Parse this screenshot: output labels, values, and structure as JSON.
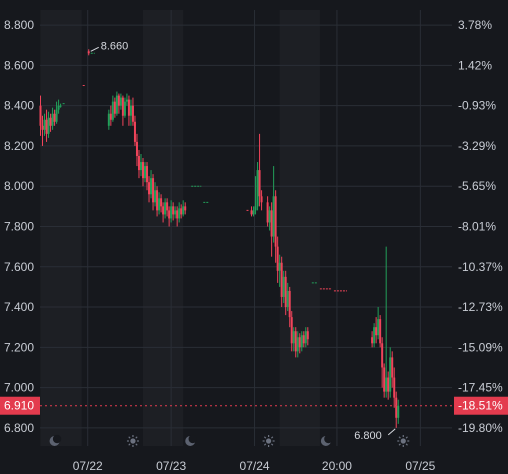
{
  "chart_data": {
    "type": "candlestick",
    "title": "",
    "xlabel": "",
    "ylabel": "",
    "ylim": [
      6.71,
      8.875
    ],
    "y_ticks": [
      "8.800",
      "8.600",
      "8.400",
      "8.200",
      "8.000",
      "7.800",
      "7.600",
      "7.400",
      "7.200",
      "7.000",
      "6.800"
    ],
    "y_tick_values": [
      8.8,
      8.6,
      8.4,
      8.2,
      8.0,
      7.8,
      7.6,
      7.4,
      7.2,
      7.0,
      6.8
    ],
    "pct_ticks": [
      "3.78%",
      "1.42%",
      "-0.93%",
      "-3.29%",
      "-5.65%",
      "-8.01%",
      "-10.37%",
      "-12.73%",
      "-15.09%",
      "-17.45%",
      "-19.80%"
    ],
    "x_ticks": [
      "07/22",
      "07/23",
      "07/24",
      "20:00",
      "07/25"
    ],
    "x_tick_index": [
      47,
      130,
      213,
      295,
      378
    ],
    "n_slots": 410,
    "current_price": "6.910",
    "current_pct": "-18.51%",
    "max_label": "8.660",
    "min_label": "6.800",
    "max_value": 8.66,
    "min_value": 6.8,
    "colors": {
      "up": "#22a05a",
      "down": "#f0445a",
      "bg": "#16181d",
      "grid": "#2a2e36",
      "night": "#1d1f24",
      "badge": "#e33b4e",
      "text": "#c8ccd4"
    },
    "icons": [
      "moon-icon",
      "sun-icon",
      "moon-icon",
      "sun-icon",
      "moon-icon",
      "sun-icon"
    ],
    "icon_index": [
      14,
      92,
      149,
      227,
      284,
      361
    ],
    "night_shading": [
      [
        0,
        41
      ],
      [
        102,
        142
      ],
      [
        238,
        278
      ]
    ],
    "candles": [
      [
        0,
        8.4,
        8.3,
        8.45,
        8.25
      ],
      [
        2,
        8.3,
        8.28,
        8.35,
        8.2
      ],
      [
        4,
        8.28,
        8.33,
        8.36,
        8.25
      ],
      [
        6,
        8.33,
        8.26,
        8.38,
        8.22
      ],
      [
        8,
        8.26,
        8.34,
        8.37,
        8.24
      ],
      [
        10,
        8.34,
        8.3,
        8.36,
        8.27
      ],
      [
        12,
        8.3,
        8.36,
        8.39,
        8.28
      ],
      [
        14,
        8.36,
        8.32,
        8.38,
        8.3
      ],
      [
        16,
        8.32,
        8.38,
        8.42,
        8.31
      ],
      [
        18,
        8.38,
        8.4,
        8.43,
        8.36
      ],
      [
        20,
        8.4,
        8.4,
        8.41,
        8.39
      ],
      [
        48,
        8.67,
        8.66,
        8.68,
        8.65
      ],
      [
        68,
        8.3,
        8.36,
        8.38,
        8.28
      ],
      [
        70,
        8.36,
        8.33,
        8.4,
        8.3
      ],
      [
        72,
        8.33,
        8.42,
        8.45,
        8.32
      ],
      [
        74,
        8.42,
        8.36,
        8.44,
        8.34
      ],
      [
        76,
        8.36,
        8.45,
        8.47,
        8.35
      ],
      [
        78,
        8.45,
        8.4,
        8.46,
        8.36
      ],
      [
        80,
        8.4,
        8.44,
        8.46,
        8.38
      ],
      [
        82,
        8.44,
        8.35,
        8.45,
        8.3
      ],
      [
        84,
        8.35,
        8.42,
        8.44,
        8.34
      ],
      [
        86,
        8.42,
        8.43,
        8.46,
        8.4
      ],
      [
        88,
        8.43,
        8.35,
        8.45,
        8.3
      ],
      [
        90,
        8.35,
        8.4,
        8.43,
        8.3
      ],
      [
        92,
        8.4,
        8.32,
        8.44,
        8.3
      ],
      [
        94,
        8.32,
        8.22,
        8.35,
        8.2
      ],
      [
        96,
        8.22,
        8.15,
        8.26,
        8.1
      ],
      [
        98,
        8.15,
        8.08,
        8.18,
        8.04
      ],
      [
        100,
        8.08,
        8.12,
        8.16,
        8.05
      ],
      [
        102,
        8.12,
        8.04,
        8.14,
        8.0
      ],
      [
        104,
        8.04,
        8.1,
        8.12,
        8.02
      ],
      [
        106,
        8.1,
        8.02,
        8.12,
        7.98
      ],
      [
        108,
        8.02,
        7.96,
        8.05,
        7.92
      ],
      [
        110,
        7.96,
        8.04,
        8.08,
        7.94
      ],
      [
        112,
        8.04,
        7.92,
        8.06,
        7.88
      ],
      [
        114,
        7.92,
        7.98,
        8.02,
        7.9
      ],
      [
        116,
        7.98,
        7.88,
        8.0,
        7.85
      ],
      [
        118,
        7.88,
        7.94,
        7.97,
        7.86
      ],
      [
        120,
        7.94,
        7.9,
        7.96,
        7.87
      ],
      [
        122,
        7.9,
        7.86,
        7.92,
        7.82
      ],
      [
        124,
        7.86,
        7.92,
        7.94,
        7.84
      ],
      [
        126,
        7.92,
        7.88,
        7.94,
        7.85
      ],
      [
        128,
        7.88,
        7.84,
        7.9,
        7.8
      ],
      [
        130,
        7.84,
        7.9,
        7.93,
        7.82
      ],
      [
        132,
        7.9,
        7.86,
        7.92,
        7.83
      ],
      [
        134,
        7.86,
        7.88,
        7.9,
        7.84
      ],
      [
        136,
        7.88,
        7.84,
        7.9,
        7.8
      ],
      [
        138,
        7.84,
        7.89,
        7.92,
        7.82
      ],
      [
        140,
        7.89,
        7.86,
        7.91,
        7.84
      ],
      [
        142,
        7.86,
        7.9,
        7.93,
        7.85
      ],
      [
        144,
        7.9,
        7.88,
        7.92,
        7.86
      ],
      [
        210,
        7.88,
        7.86,
        7.9,
        7.85
      ],
      [
        212,
        7.86,
        7.88,
        7.9,
        7.85
      ],
      [
        214,
        7.88,
        7.9,
        8.05,
        7.86
      ],
      [
        216,
        7.9,
        8.08,
        8.12,
        7.88
      ],
      [
        218,
        8.08,
        7.95,
        8.26,
        7.9
      ],
      [
        220,
        7.95,
        7.92,
        7.98,
        7.88
      ],
      [
        226,
        7.92,
        7.82,
        7.95,
        7.8
      ],
      [
        228,
        7.82,
        7.88,
        7.9,
        7.78
      ],
      [
        230,
        7.88,
        7.75,
        7.92,
        7.65
      ],
      [
        232,
        7.75,
        7.95,
        8.1,
        7.72
      ],
      [
        234,
        7.95,
        7.7,
        7.98,
        7.62
      ],
      [
        236,
        7.7,
        7.58,
        7.75,
        7.52
      ],
      [
        238,
        7.58,
        7.62,
        7.66,
        7.5
      ],
      [
        240,
        7.62,
        7.45,
        7.65,
        7.4
      ],
      [
        242,
        7.45,
        7.55,
        7.58,
        7.42
      ],
      [
        244,
        7.55,
        7.4,
        7.58,
        7.36
      ],
      [
        246,
        7.4,
        7.48,
        7.52,
        7.38
      ],
      [
        248,
        7.48,
        7.35,
        7.5,
        7.3
      ],
      [
        250,
        7.35,
        7.22,
        7.38,
        7.18
      ],
      [
        252,
        7.22,
        7.28,
        7.3,
        7.18
      ],
      [
        254,
        7.28,
        7.18,
        7.3,
        7.15
      ],
      [
        256,
        7.18,
        7.25,
        7.28,
        7.15
      ],
      [
        258,
        7.25,
        7.2,
        7.27,
        7.17
      ],
      [
        260,
        7.2,
        7.26,
        7.28,
        7.18
      ],
      [
        262,
        7.26,
        7.22,
        7.28,
        7.2
      ],
      [
        264,
        7.22,
        7.28,
        7.3,
        7.2
      ],
      [
        266,
        7.28,
        7.24,
        7.3,
        7.21
      ],
      [
        330,
        7.25,
        7.22,
        7.28,
        7.2
      ],
      [
        332,
        7.22,
        7.3,
        7.32,
        7.2
      ],
      [
        334,
        7.3,
        7.26,
        7.35,
        7.22
      ],
      [
        336,
        7.26,
        7.34,
        7.4,
        7.24
      ],
      [
        338,
        7.34,
        7.22,
        7.36,
        7.2
      ],
      [
        340,
        7.22,
        7.1,
        7.25,
        7.0
      ],
      [
        342,
        7.1,
        6.98,
        7.12,
        6.95
      ],
      [
        344,
        6.98,
        7.05,
        7.7,
        6.95
      ],
      [
        346,
        7.05,
        6.98,
        7.08,
        6.94
      ],
      [
        348,
        6.98,
        7.15,
        7.2,
        6.95
      ],
      [
        350,
        7.15,
        7.05,
        7.18,
        7.0
      ],
      [
        352,
        7.05,
        6.95,
        7.1,
        6.9
      ],
      [
        354,
        6.95,
        6.85,
        6.98,
        6.8
      ],
      [
        356,
        6.85,
        6.91,
        6.94,
        6.82
      ]
    ],
    "flat_segments": [
      [
        22,
        24,
        8.41,
        "up"
      ],
      [
        50,
        54,
        8.66,
        "up"
      ],
      [
        42,
        44,
        8.5,
        "down"
      ],
      [
        150,
        160,
        8.0,
        "up"
      ],
      [
        162,
        168,
        7.92,
        "up"
      ],
      [
        205,
        208,
        7.88,
        "down"
      ],
      [
        270,
        275,
        7.52,
        "up"
      ],
      [
        278,
        290,
        7.49,
        "down"
      ],
      [
        292,
        305,
        7.48,
        "down"
      ]
    ]
  }
}
